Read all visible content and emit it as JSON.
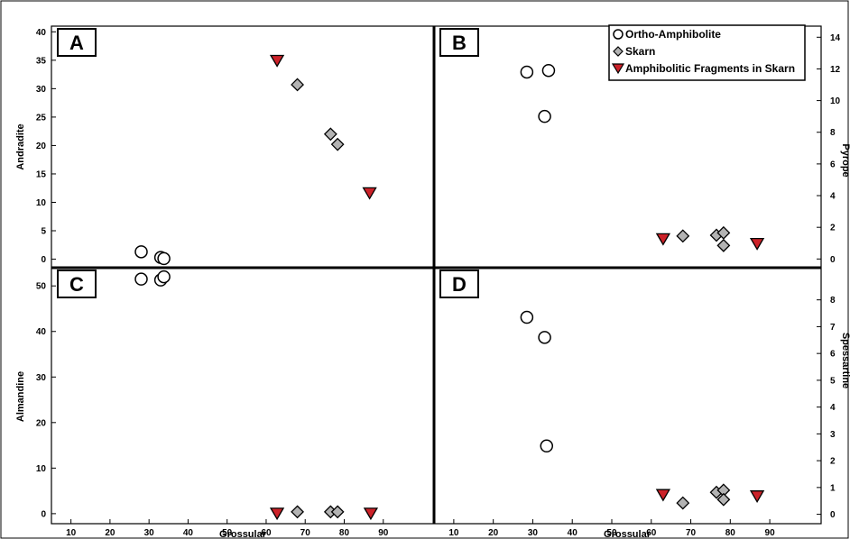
{
  "colors": {
    "circle_fill": "#ffffff",
    "diamond_fill": "#b3b3b3",
    "triangle_fill": "#cc2229",
    "stroke": "#000000"
  },
  "legend": [
    {
      "label": "Ortho-Amphibolite",
      "marker": "circle"
    },
    {
      "label": "Skarn",
      "marker": "diamond"
    },
    {
      "label": "Amphibolitic Fragments in Skarn",
      "marker": "triangle-down"
    }
  ],
  "chart_data": [
    {
      "panel": "A",
      "type": "scatter",
      "xlabel": "",
      "ylabel": "Andradite",
      "ylabel_side": "left",
      "xlim": [
        5,
        103
      ],
      "ylim": [
        -1.5,
        41
      ],
      "yticks": [
        0,
        5,
        10,
        15,
        20,
        25,
        30,
        35,
        40
      ],
      "series": [
        {
          "name": "Ortho-Amphibolite",
          "marker": "circle",
          "points": [
            [
              28,
              1.3
            ],
            [
              33,
              0.3
            ],
            [
              33.8,
              0.1
            ]
          ]
        },
        {
          "name": "Skarn",
          "marker": "diamond",
          "points": [
            [
              68,
              30.7
            ],
            [
              76.5,
              22
            ],
            [
              78.3,
              20.2
            ]
          ]
        },
        {
          "name": "Amphibolitic Fragments in Skarn",
          "marker": "triangle-down",
          "points": [
            [
              62.8,
              34.9
            ],
            [
              86.5,
              11.6
            ]
          ]
        }
      ]
    },
    {
      "panel": "B",
      "type": "scatter",
      "xlabel": "",
      "ylabel": "Pyrope",
      "ylabel_side": "right",
      "xlim": [
        5,
        103
      ],
      "ylim": [
        -0.55,
        14.7
      ],
      "yticks": [
        0,
        2,
        4,
        6,
        8,
        10,
        12,
        14
      ],
      "series": [
        {
          "name": "Ortho-Amphibolite",
          "marker": "circle",
          "points": [
            [
              28.5,
              11.8
            ],
            [
              34,
              11.9
            ],
            [
              33,
              9.0
            ]
          ]
        },
        {
          "name": "Skarn",
          "marker": "diamond",
          "points": [
            [
              68,
              1.45
            ],
            [
              76.5,
              1.5
            ],
            [
              78.3,
              1.65
            ],
            [
              78.3,
              0.85
            ]
          ]
        },
        {
          "name": "Amphibolitic Fragments in Skarn",
          "marker": "triangle-down",
          "points": [
            [
              63,
              1.25
            ],
            [
              86.8,
              0.95
            ]
          ]
        }
      ]
    },
    {
      "panel": "C",
      "type": "scatter",
      "xlabel": "Grossular",
      "ylabel": "Almandine",
      "ylabel_side": "left",
      "xlim": [
        5,
        103
      ],
      "ylim": [
        -2.2,
        54
      ],
      "yticks": [
        0,
        10,
        20,
        30,
        40,
        50
      ],
      "xticks": [
        10,
        20,
        30,
        40,
        50,
        60,
        70,
        80,
        90
      ],
      "series": [
        {
          "name": "Ortho-Amphibolite",
          "marker": "circle",
          "points": [
            [
              28,
              51.5
            ],
            [
              33,
              51.3
            ],
            [
              33.8,
              52
            ]
          ]
        },
        {
          "name": "Skarn",
          "marker": "diamond",
          "points": [
            [
              68,
              0.4
            ],
            [
              76.5,
              0.4
            ],
            [
              78.3,
              0.4
            ]
          ]
        },
        {
          "name": "Amphibolitic Fragments in Skarn",
          "marker": "triangle-down",
          "points": [
            [
              62.8,
              0
            ],
            [
              86.8,
              0
            ]
          ]
        }
      ]
    },
    {
      "panel": "D",
      "type": "scatter",
      "xlabel": "Grossular",
      "ylabel": "Spessartine",
      "ylabel_side": "right",
      "xlim": [
        5,
        103
      ],
      "ylim": [
        -0.35,
        9.2
      ],
      "yticks": [
        0,
        1,
        2,
        3,
        4,
        5,
        6,
        7,
        8
      ],
      "xticks": [
        10,
        20,
        30,
        40,
        50,
        60,
        70,
        80,
        90
      ],
      "series": [
        {
          "name": "Ortho-Amphibolite",
          "marker": "circle",
          "points": [
            [
              28.5,
              7.35
            ],
            [
              33,
              6.6
            ],
            [
              33.5,
              2.55
            ]
          ]
        },
        {
          "name": "Skarn",
          "marker": "diamond",
          "points": [
            [
              68,
              0.42
            ],
            [
              76.5,
              0.82
            ],
            [
              78.3,
              0.9
            ],
            [
              78.3,
              0.55
            ]
          ]
        },
        {
          "name": "Amphibolitic Fragments in Skarn",
          "marker": "triangle-down",
          "points": [
            [
              63,
              0.72
            ],
            [
              86.8,
              0.67
            ]
          ]
        }
      ]
    }
  ]
}
